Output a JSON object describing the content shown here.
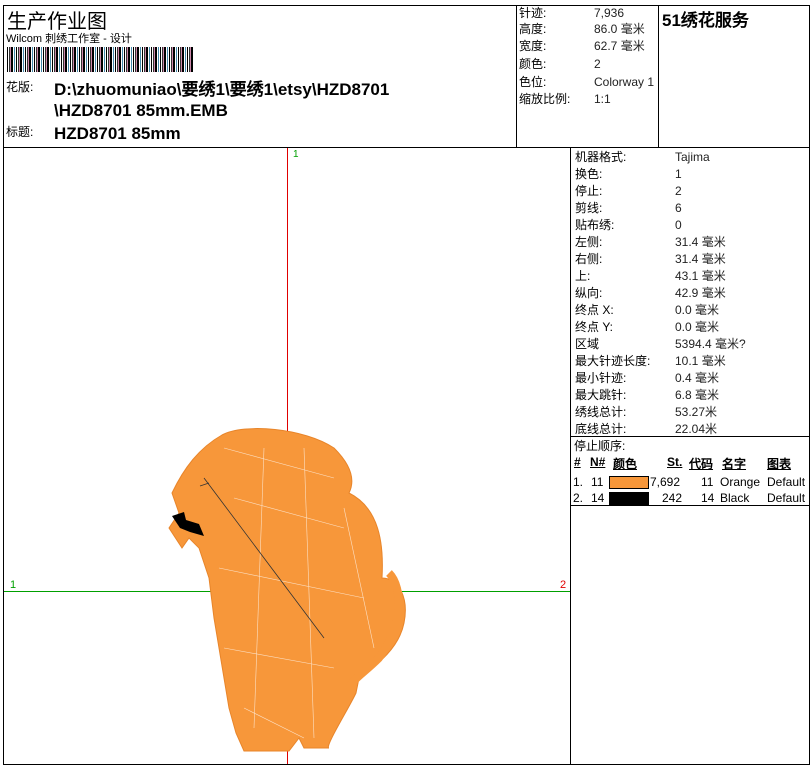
{
  "header": {
    "title": "生产作业图",
    "subtitle": "Wilcom 刺绣工作室 - 设计",
    "design_label": "花版:",
    "design_path_line1": "D:\\zhuomuniao\\要绣1\\要绣1\\etsy\\HZD8701",
    "design_path_line2": "\\HZD8701 85mm.EMB",
    "title_label": "标题:",
    "title_value": "HZD8701 85mm",
    "brand": "51绣花服务"
  },
  "summary": [
    {
      "label": "针迹:",
      "value": "7,936"
    },
    {
      "label": "高度:",
      "value": "86.0 毫米"
    },
    {
      "label": "宽度:",
      "value": "62.7 毫米"
    },
    {
      "label": "颜色:",
      "value": "2"
    },
    {
      "label": "色位:",
      "value": "Colorway 1"
    },
    {
      "label": "缩放比例:",
      "value": "1:1"
    }
  ],
  "details": [
    {
      "label": "机器格式:",
      "value": "Tajima"
    },
    {
      "label": "换色:",
      "value": "1"
    },
    {
      "label": "停止:",
      "value": "2"
    },
    {
      "label": "剪线:",
      "value": "6"
    },
    {
      "label": "贴布绣:",
      "value": "0"
    },
    {
      "label": "左侧:",
      "value": "31.4 毫米"
    },
    {
      "label": "右侧:",
      "value": "31.4 毫米"
    },
    {
      "label": "上:",
      "value": "43.1 毫米"
    },
    {
      "label": "纵向:",
      "value": "42.9 毫米"
    },
    {
      "label": "终点 X:",
      "value": "0.0 毫米"
    },
    {
      "label": "终点 Y:",
      "value": "0.0 毫米"
    },
    {
      "label": "区域",
      "value": "5394.4 毫米?"
    },
    {
      "label": "最大针迹长度:",
      "value": "10.1 毫米"
    },
    {
      "label": "最小针迹:",
      "value": "0.4 毫米"
    },
    {
      "label": "最大跳针:",
      "value": "6.8 毫米"
    },
    {
      "label": "绣线总计:",
      "value": "53.27米"
    },
    {
      "label": "底线总计:",
      "value": "22.04米"
    }
  ],
  "stop_sequence": {
    "title": "停止顺序:",
    "columns": [
      "#",
      "N#",
      "颜色",
      "St.",
      "代码",
      "名字",
      "图表"
    ],
    "rows": [
      {
        "idx": "1.",
        "n": "11",
        "color": "#f7973a",
        "stitches": "7,692",
        "code": "11",
        "name": "Orange",
        "chart": "Default"
      },
      {
        "idx": "2.",
        "n": "14",
        "color": "#000000",
        "stitches": "242",
        "code": "14",
        "name": "Black",
        "chart": "Default"
      }
    ]
  },
  "canvas": {
    "axis_top_label": "1",
    "axis_left_label": "1",
    "axis_right_label": "2",
    "axis_color": "#e00000",
    "marker_color": "#00a000"
  }
}
